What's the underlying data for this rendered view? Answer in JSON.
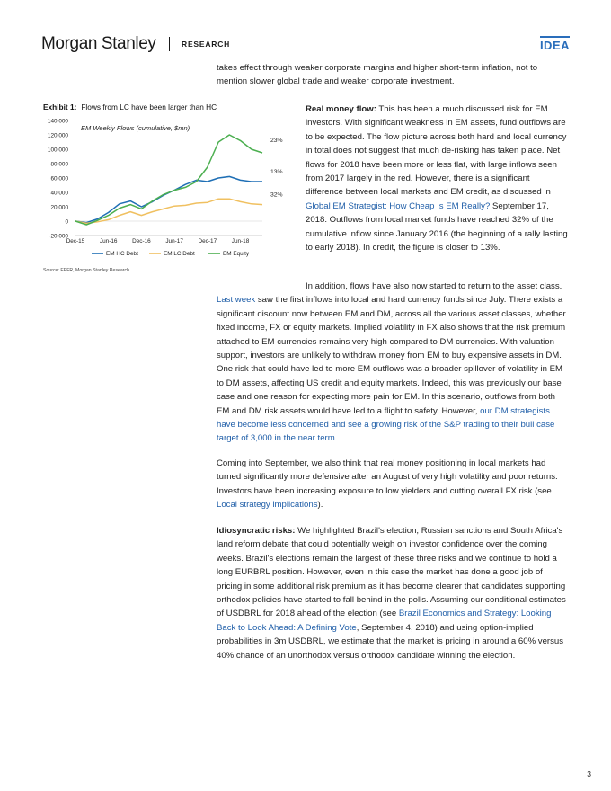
{
  "header": {
    "logo": "Morgan Stanley",
    "section": "RESEARCH",
    "badge": "IDEA"
  },
  "intro": "takes effect through weaker corporate margins and higher short-term inflation, not to mention slower global trade and weaker corporate investment.",
  "exhibit": {
    "label": "Exhibit 1:",
    "title": "Flows from LC have been larger than HC",
    "source": "Source: EPFR, Morgan Stanley Research"
  },
  "chart_data": {
    "type": "line",
    "title": "EM Weekly Flows (cumulative, $mn)",
    "x_ticks": [
      "Dec-15",
      "Jun-16",
      "Dec-16",
      "Jun-17",
      "Dec-17",
      "Jun-18"
    ],
    "y_ticks": [
      "140,000",
      "120,000",
      "100,000",
      "80,000",
      "60,000",
      "40,000",
      "20,000",
      "0",
      "-20,000"
    ],
    "ylim": [
      -20000,
      140000
    ],
    "x": [
      "Dec-15",
      "Feb-16",
      "Apr-16",
      "Jun-16",
      "Aug-16",
      "Oct-16",
      "Dec-16",
      "Feb-17",
      "Apr-17",
      "Jun-17",
      "Aug-17",
      "Oct-17",
      "Dec-17",
      "Feb-18",
      "Apr-18",
      "Jun-18",
      "Aug-18",
      "Sep-18"
    ],
    "series": [
      {
        "name": "EM HC Debt",
        "color": "#1f6fb5",
        "values": [
          0,
          -2000,
          3000,
          12000,
          24000,
          28000,
          20000,
          27000,
          36000,
          43000,
          51000,
          57000,
          55000,
          60000,
          62000,
          57000,
          55000,
          55000
        ]
      },
      {
        "name": "EM LC Debt",
        "color": "#f0c060",
        "values": [
          0,
          -3000,
          -1000,
          2000,
          8000,
          13000,
          8000,
          13000,
          17000,
          21000,
          22000,
          25000,
          26000,
          31000,
          31000,
          27000,
          24000,
          23000
        ]
      },
      {
        "name": "EM Equity",
        "color": "#4caf50",
        "values": [
          0,
          -5000,
          1000,
          8000,
          18000,
          23000,
          17000,
          28000,
          37000,
          43000,
          47000,
          55000,
          75000,
          110000,
          120000,
          112000,
          100000,
          95000
        ]
      }
    ],
    "annotations": [
      "23%",
      "13%",
      "32%"
    ],
    "legend": "bottom"
  },
  "sections": {
    "real_money_label": "Real money flow:",
    "real_money_text": " This has been a much discussed risk for EM investors. With significant weakness in EM assets, fund outflows are to be expected. The flow picture across both hard and local currency in total does not suggest that much de-risking has taken place. Net flows for 2018 have been more or less flat, with large inflows seen from 2017 largely in the red. However, there is a significant difference between local markets and EM credit, as discussed in ",
    "real_money_link": "Global EM Strategist: How Cheap Is EM Really?",
    "real_money_text2": " September 17, 2018. Outflows from local market funds have reached 32% of the cumulative inflow since January 2016 (the beginning of a rally lasting to early 2018). In credit, the figure is closer to 13%.",
    "addition_text1": "In addition, flows have also now started to return to the asset class. ",
    "addition_link1": "Last week",
    "addition_text2": " saw the first inflows into local and hard currency funds since July. There exists a significant discount now between EM and DM, across all the various asset classes, whether fixed income, FX or equity markets. Implied volatility in FX also shows that the risk premium attached to EM currencies remains very high compared to DM currencies. With valuation support, investors are unlikely to withdraw money from EM to buy expensive assets in DM. One risk that could have led to more EM outflows was a broader spillover of volatility in EM to DM assets, affecting US credit and equity markets. Indeed, this was previously our base case and one reason for expecting more pain for EM. In this scenario, outflows from both EM and DM risk assets would have led to a flight to safety. However, ",
    "addition_link2": "our DM strategists have become less concerned and see a growing risk of the S&P trading to their bull case target of 3,000 in the near term",
    "addition_text3": ".",
    "september_text1": "Coming into September, we also think that real money positioning in local markets had turned significantly more defensive after an August of very high volatility and poor returns. Investors have been increasing exposure to low yielders and cutting overall FX risk (see ",
    "september_link": "Local strategy implications",
    "september_text2": ").",
    "idio_label": "Idiosyncratic risks:",
    "idio_text1": " We highlighted Brazil's election, Russian sanctions and South Africa's land reform debate that could potentially weigh on investor confidence over the coming weeks. Brazil's elections remain the largest of these three risks and we continue to hold a long EURBRL position. However, even in this case the market has done a good job of pricing in some additional risk premium as it has become clearer that candidates supporting orthodox policies have started to fall behind in the polls. Assuming our conditional estimates of USDBRL for 2018 ahead of the election (see ",
    "idio_link": "Brazil Economics and Strategy: Looking Back to Look Ahead: A Defining Vote",
    "idio_text2": ", September 4, 2018) and using option-implied probabilities in 3m USDBRL, we estimate that the market is pricing in around a 60% versus 40% chance of an unorthodox versus orthodox candidate winning the election."
  },
  "page_number": "3"
}
